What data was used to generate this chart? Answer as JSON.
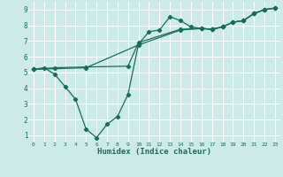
{
  "title": "",
  "xlabel": "Humidex (Indice chaleur)",
  "ylabel": "",
  "bg_color": "#cceae7",
  "line_color": "#1a6b5a",
  "grid_color": "#ffffff",
  "xlim": [
    -0.5,
    23.5
  ],
  "ylim": [
    0.6,
    9.5
  ],
  "xticks": [
    0,
    1,
    2,
    3,
    4,
    5,
    6,
    7,
    8,
    9,
    10,
    11,
    12,
    13,
    14,
    15,
    16,
    17,
    18,
    19,
    20,
    21,
    22,
    23
  ],
  "yticks": [
    1,
    2,
    3,
    4,
    5,
    6,
    7,
    8,
    9
  ],
  "line1_x": [
    0,
    1,
    2,
    3,
    4,
    5,
    6,
    7,
    8,
    9,
    10,
    11,
    12,
    13,
    14,
    15,
    16,
    17,
    18,
    19,
    20,
    21,
    22,
    23
  ],
  "line1_y": [
    5.2,
    5.3,
    4.9,
    4.1,
    3.3,
    1.4,
    0.85,
    1.7,
    2.2,
    3.6,
    6.8,
    7.6,
    7.7,
    8.55,
    8.3,
    7.9,
    7.8,
    7.75,
    7.9,
    8.2,
    8.3,
    8.75,
    9.0,
    9.1
  ],
  "line2_x": [
    0,
    2,
    5,
    9,
    10,
    14,
    16,
    17,
    18,
    19,
    20,
    21,
    22,
    23
  ],
  "line2_y": [
    5.2,
    5.3,
    5.35,
    5.4,
    6.9,
    7.75,
    7.8,
    7.75,
    7.9,
    8.2,
    8.3,
    8.75,
    9.0,
    9.1
  ],
  "line3_x": [
    0,
    5,
    10,
    14,
    16,
    17,
    18,
    19,
    20,
    21,
    22,
    23
  ],
  "line3_y": [
    5.2,
    5.3,
    6.75,
    7.7,
    7.8,
    7.75,
    7.9,
    8.2,
    8.3,
    8.75,
    9.0,
    9.1
  ]
}
